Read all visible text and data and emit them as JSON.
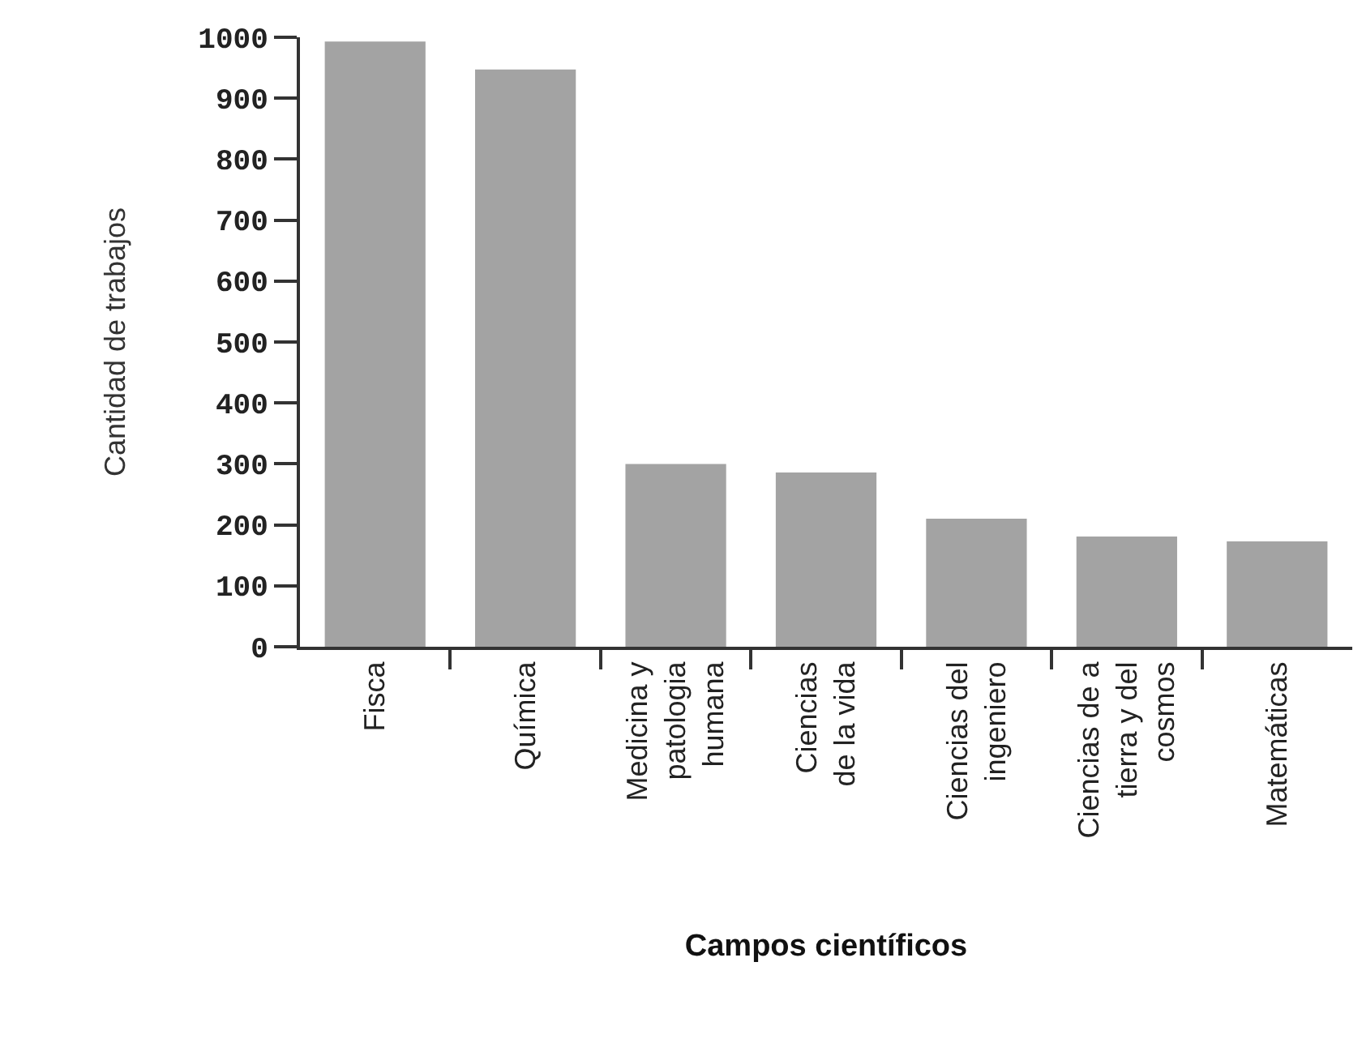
{
  "chart_data": {
    "type": "bar",
    "xlabel": "Campos científicos",
    "ylabel": "Cantidad de trabajos",
    "categories": [
      "Fisca",
      "Química",
      "Medicina y\npatologia\nhumana",
      "Ciencias\nde la vida",
      "Ciencias del\ningeniero",
      "Ciencias de a\ntierra y del\ncosmos",
      "Matemáticas"
    ],
    "values": [
      993,
      947,
      300,
      286,
      210,
      181,
      173
    ],
    "color": "#a3a3a3",
    "ylim": [
      0,
      1000
    ],
    "yticks": [
      0,
      100,
      200,
      300,
      400,
      500,
      600,
      700,
      800,
      900,
      1000
    ],
    "grid": false
  }
}
